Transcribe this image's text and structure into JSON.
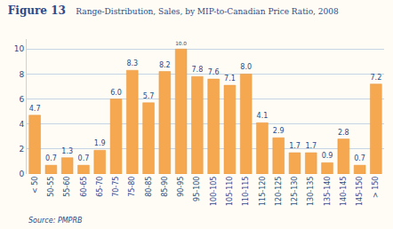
{
  "chart_data": {
    "type": "bar",
    "title": "Figure 13",
    "subtitle": "Range-Distribution, Sales, by MIP-to-Canadian Price Ratio, 2008",
    "annotations": [
      "Source: PMPRB"
    ],
    "categories": [
      "< 50",
      "50-55",
      "55-60",
      "60-65",
      "65-70",
      "70-75",
      "75-80",
      "80-85",
      "85-90",
      "90-95",
      "95-100",
      "100-105",
      "105-110",
      "110-115",
      "115-120",
      "120-125",
      "125-130",
      "130-135",
      "135-140",
      "140-145",
      "145-150",
      "> 150"
    ],
    "values": [
      4.7,
      0.7,
      1.3,
      0.7,
      1.9,
      6.0,
      8.3,
      5.7,
      8.2,
      10.0,
      7.8,
      7.6,
      7.1,
      8.0,
      4.1,
      2.9,
      1.7,
      1.7,
      0.9,
      2.8,
      0.7,
      7.2
    ],
    "value_labels": [
      "4.7",
      "0.7",
      "1.3",
      "0.7",
      "1.9",
      "6.0",
      "8.3",
      "5.7",
      "8.2",
      "10.0",
      "7.8",
      "7.6",
      "7.1",
      "8.0",
      "4.1",
      "2.9",
      "1.7",
      "1.7",
      "0.9",
      "2.8",
      "0.7",
      "7.2"
    ],
    "color": "#F5A850",
    "ylim": [
      0,
      10.8
    ],
    "yticks": [
      0,
      2,
      4,
      6,
      8,
      10
    ],
    "grid": true,
    "data_labels": true
  }
}
